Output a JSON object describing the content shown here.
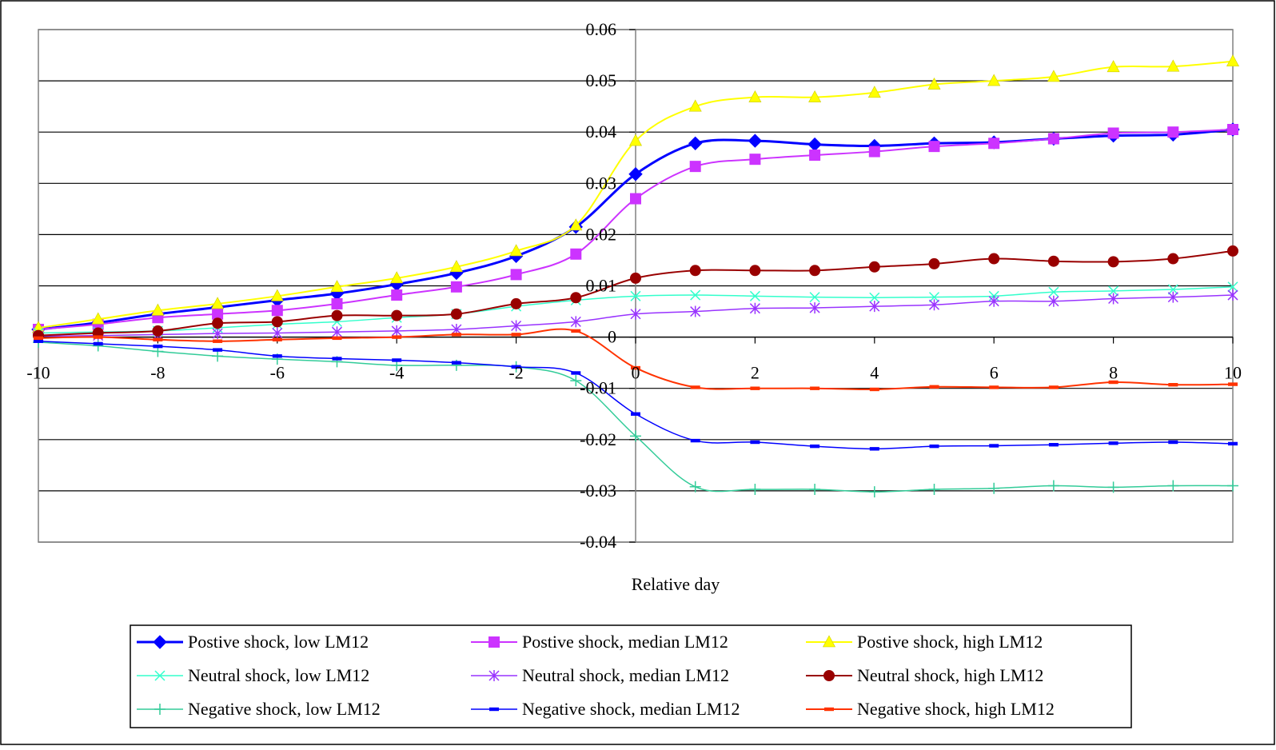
{
  "chart_data": {
    "type": "line",
    "title": "",
    "xlabel": "Relative day",
    "ylabel": "",
    "xlim": [
      -10,
      10
    ],
    "ylim": [
      -0.04,
      0.06
    ],
    "x_ticks": [
      {
        "value": -10,
        "label": "-10"
      },
      {
        "value": -8,
        "label": "-8"
      },
      {
        "value": -6,
        "label": "-6"
      },
      {
        "value": -4,
        "label": "-4"
      },
      {
        "value": -2,
        "label": "-2"
      },
      {
        "value": 0,
        "label": "0"
      },
      {
        "value": 2,
        "label": "2"
      },
      {
        "value": 4,
        "label": "4"
      },
      {
        "value": 6,
        "label": "6"
      },
      {
        "value": 8,
        "label": "8"
      },
      {
        "value": 10,
        "label": "10"
      }
    ],
    "y_ticks": [
      {
        "value": 0.06,
        "label": "0.06"
      },
      {
        "value": 0.05,
        "label": "0.05"
      },
      {
        "value": 0.04,
        "label": "0.04"
      },
      {
        "value": 0.03,
        "label": "0.03"
      },
      {
        "value": 0.02,
        "label": "0.02"
      },
      {
        "value": 0.01,
        "label": "0.01"
      },
      {
        "value": 0,
        "label": "0"
      },
      {
        "value": -0.01,
        "label": "-0.01"
      },
      {
        "value": -0.02,
        "label": "-0.02"
      },
      {
        "value": -0.03,
        "label": "-0.03"
      },
      {
        "value": -0.04,
        "label": "-0.04"
      }
    ],
    "grid": "horizontal",
    "legend_position": "bottom",
    "x": [
      -10,
      -9,
      -8,
      -7,
      -6,
      -5,
      -4,
      -3,
      -2,
      -1,
      0,
      1,
      2,
      3,
      4,
      5,
      6,
      7,
      8,
      9,
      10
    ],
    "series": [
      {
        "name": "Postive shock, low LM12",
        "color": "#0000ff",
        "marker": "diamond",
        "line_width": 3,
        "values": [
          0.0015,
          0.0028,
          0.0045,
          0.0058,
          0.0072,
          0.0085,
          0.0103,
          0.0125,
          0.0158,
          0.0215,
          0.0318,
          0.0378,
          0.0383,
          0.0376,
          0.0373,
          0.0378,
          0.038,
          0.0387,
          0.0393,
          0.0395,
          0.0405
        ]
      },
      {
        "name": "Postive shock, median LM12",
        "color": "#cc33ff",
        "marker": "square",
        "line_width": 2,
        "values": [
          0.0015,
          0.0025,
          0.0038,
          0.0045,
          0.0052,
          0.0065,
          0.0082,
          0.0098,
          0.0122,
          0.0162,
          0.027,
          0.0333,
          0.0347,
          0.0355,
          0.0362,
          0.0372,
          0.0378,
          0.0387,
          0.0398,
          0.04,
          0.0405
        ]
      },
      {
        "name": "Postive shock, high LM12",
        "color": "#ffff00",
        "marker": "triangle",
        "line_width": 2,
        "values": [
          0.0018,
          0.0035,
          0.0052,
          0.0065,
          0.008,
          0.0098,
          0.0115,
          0.0137,
          0.0168,
          0.0218,
          0.0383,
          0.045,
          0.0468,
          0.0468,
          0.0477,
          0.0493,
          0.05,
          0.0508,
          0.0527,
          0.0528,
          0.0538
        ]
      },
      {
        "name": "Neutral shock, low LM12",
        "color": "#33ffcc",
        "marker": "x",
        "line_width": 1.5,
        "values": [
          0.0008,
          0.001,
          0.0012,
          0.0018,
          0.0025,
          0.003,
          0.0038,
          0.0045,
          0.006,
          0.0072,
          0.008,
          0.0082,
          0.008,
          0.0078,
          0.0077,
          0.0078,
          0.008,
          0.0088,
          0.009,
          0.0093,
          0.0098
        ]
      },
      {
        "name": "Neutral shock, median LM12",
        "color": "#9933ff",
        "marker": "star",
        "line_width": 1.5,
        "values": [
          0.0002,
          0.0003,
          0.0005,
          0.0007,
          0.0008,
          0.001,
          0.0012,
          0.0015,
          0.0022,
          0.003,
          0.0045,
          0.005,
          0.0056,
          0.0057,
          0.006,
          0.0063,
          0.007,
          0.007,
          0.0075,
          0.0078,
          0.0082
        ]
      },
      {
        "name": "Neutral shock, high LM12",
        "color": "#990000",
        "marker": "circle",
        "line_width": 2,
        "values": [
          0.0003,
          0.0008,
          0.0012,
          0.0027,
          0.003,
          0.0042,
          0.0042,
          0.0045,
          0.0065,
          0.0077,
          0.0115,
          0.013,
          0.013,
          0.013,
          0.0137,
          0.0143,
          0.0153,
          0.0148,
          0.0147,
          0.0153,
          0.0168
        ]
      },
      {
        "name": "Negative shock, low LM12",
        "color": "#33cc99",
        "marker": "plus",
        "line_width": 1.5,
        "values": [
          -0.001,
          -0.0017,
          -0.0028,
          -0.0037,
          -0.0043,
          -0.0048,
          -0.0055,
          -0.0055,
          -0.0058,
          -0.0085,
          -0.0193,
          -0.0292,
          -0.0297,
          -0.0297,
          -0.0302,
          -0.0297,
          -0.0295,
          -0.029,
          -0.0293,
          -0.029,
          -0.029
        ]
      },
      {
        "name": "Negative shock, median LM12",
        "color": "#0000ff",
        "marker": "dash",
        "line_width": 1.5,
        "values": [
          -0.0008,
          -0.0013,
          -0.0018,
          -0.0025,
          -0.0037,
          -0.0042,
          -0.0045,
          -0.005,
          -0.0058,
          -0.007,
          -0.015,
          -0.0202,
          -0.0205,
          -0.0213,
          -0.0218,
          -0.0213,
          -0.0212,
          -0.021,
          -0.0207,
          -0.0205,
          -0.0208
        ]
      },
      {
        "name": "Negative shock, high LM12",
        "color": "#ff3300",
        "marker": "dash",
        "line_width": 2,
        "values": [
          -0.0002,
          0.0,
          -0.0005,
          -0.0008,
          -0.0005,
          -0.0002,
          0.0,
          0.0005,
          0.0005,
          0.0012,
          -0.006,
          -0.0098,
          -0.01,
          -0.01,
          -0.0102,
          -0.0097,
          -0.0098,
          -0.0098,
          -0.0088,
          -0.0093,
          -0.0092
        ]
      }
    ]
  }
}
